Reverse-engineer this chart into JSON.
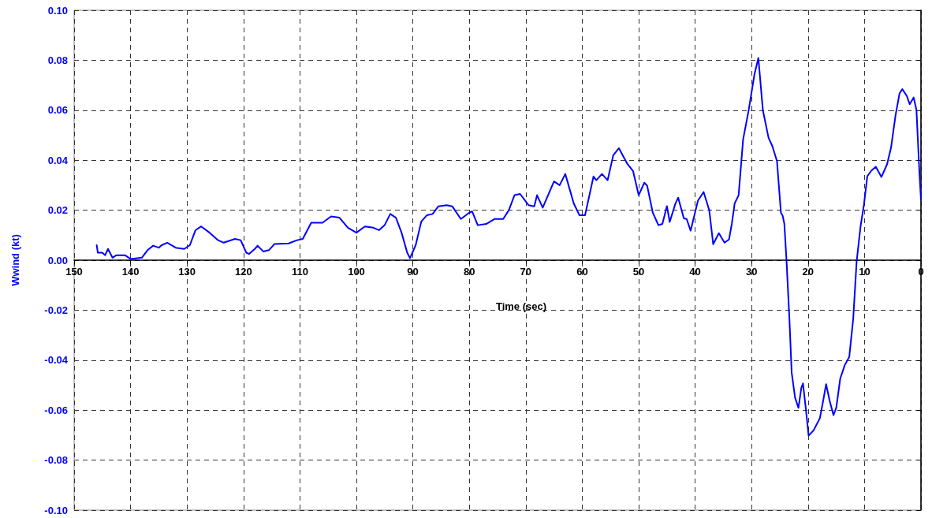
{
  "chart_data": {
    "type": "line",
    "xlabel": "Time (sec)",
    "ylabel": "Wwind (kt)",
    "xlim": [
      150,
      0
    ],
    "xticks": [
      150,
      140,
      130,
      120,
      110,
      100,
      90,
      80,
      70,
      60,
      50,
      40,
      30,
      20,
      10,
      0
    ],
    "ylim": [
      -0.1,
      0.1
    ],
    "yticks": [
      {
        "value": -0.1,
        "label": "-0.10"
      },
      {
        "value": -0.08,
        "label": "-0.08"
      },
      {
        "value": -0.06,
        "label": "-0.06"
      },
      {
        "value": -0.04,
        "label": "-0.04"
      },
      {
        "value": -0.02,
        "label": "-0.02"
      },
      {
        "value": 0,
        "label": "0.00"
      },
      {
        "value": 0.02,
        "label": "0.02"
      },
      {
        "value": 0.04,
        "label": "0.04"
      },
      {
        "value": 0.06,
        "label": "0.06"
      },
      {
        "value": 0.08,
        "label": "0.08"
      },
      {
        "value": 0.1,
        "label": "0.10"
      }
    ],
    "grid": true,
    "marker": "none",
    "line_style": "solid",
    "series": [
      {
        "color": "#0000ff",
        "x": [
          146,
          145.8,
          145,
          144.5,
          144,
          143.2,
          142.5,
          141,
          140,
          138,
          137,
          136,
          135,
          134.5,
          133.5,
          132,
          130.5,
          129.5,
          128.5,
          127.5,
          126,
          124.5,
          123.5,
          121.5,
          120.5,
          119.5,
          119,
          118,
          117.5,
          116.5,
          115.5,
          114.5,
          112,
          110.5,
          109.5,
          108,
          106,
          104.5,
          103,
          101.5,
          100,
          98.5,
          97,
          96,
          95,
          94,
          93,
          92,
          91,
          90.5,
          89.5,
          88.5,
          87.5,
          86.5,
          85.5,
          84,
          83,
          81.5,
          80,
          79.5,
          78.5,
          77,
          75.5,
          74,
          73,
          72,
          71,
          69.5,
          68.5,
          68,
          67,
          65,
          64,
          63,
          61.5,
          60.5,
          59.5,
          58,
          57.5,
          56.5,
          55.5,
          54.5,
          53.5,
          52,
          51,
          50,
          49,
          48.5,
          47.5,
          46.5,
          45.8,
          45,
          44.5,
          43.5,
          43,
          42,
          41.5,
          40.8,
          39.5,
          38.5,
          37.5,
          36.8,
          35.8,
          34.8,
          34,
          33.5,
          33,
          32.3,
          31.5,
          30.5,
          29.5,
          28.8,
          28,
          27,
          26.3,
          25.5,
          24.8,
          24.5,
          24.2,
          23.8,
          23.3,
          22.9,
          22.3,
          21.7,
          21.2,
          20.9,
          20.4,
          19.9,
          19,
          17.9,
          17.3,
          16.8,
          16.2,
          15.5,
          15,
          14.3,
          13.5,
          12.7,
          12,
          11.4,
          10.7,
          10.1,
          9.5,
          8.8,
          8,
          7,
          6,
          5.3,
          4.5,
          3.8,
          3.3,
          2.5,
          2,
          1.3,
          0.8,
          0.3,
          0
        ],
        "values": [
          0.006,
          0.003,
          0.003,
          0.002,
          0.0045,
          0.001,
          0.002,
          0.002,
          0.0005,
          0.001,
          0.004,
          0.0058,
          0.005,
          0.006,
          0.007,
          0.005,
          0.0045,
          0.006,
          0.012,
          0.0135,
          0.011,
          0.008,
          0.007,
          0.0085,
          0.008,
          0.003,
          0.0025,
          0.0045,
          0.0058,
          0.0035,
          0.004,
          0.0065,
          0.0067,
          0.008,
          0.0085,
          0.015,
          0.015,
          0.0175,
          0.017,
          0.013,
          0.011,
          0.0135,
          0.013,
          0.012,
          0.014,
          0.0185,
          0.017,
          0.011,
          0.003,
          0.0008,
          0.006,
          0.0155,
          0.018,
          0.0185,
          0.0215,
          0.022,
          0.0215,
          0.0165,
          0.019,
          0.0195,
          0.014,
          0.0145,
          0.0165,
          0.0165,
          0.02,
          0.026,
          0.0265,
          0.022,
          0.0215,
          0.026,
          0.021,
          0.0315,
          0.03,
          0.0345,
          0.0227,
          0.018,
          0.018,
          0.0335,
          0.032,
          0.0345,
          0.032,
          0.042,
          0.0448,
          0.0385,
          0.0357,
          0.026,
          0.031,
          0.0298,
          0.019,
          0.014,
          0.0145,
          0.0216,
          0.0153,
          0.0226,
          0.025,
          0.0167,
          0.0165,
          0.0118,
          0.0238,
          0.0273,
          0.02,
          0.0064,
          0.0108,
          0.007,
          0.0083,
          0.0146,
          0.0227,
          0.026,
          0.0483,
          0.0602,
          0.0743,
          0.0809,
          0.06,
          0.049,
          0.0455,
          0.0396,
          0.0189,
          0.0178,
          0.0146,
          -0.0007,
          -0.0235,
          -0.045,
          -0.055,
          -0.0591,
          -0.0512,
          -0.0493,
          -0.0593,
          -0.0702,
          -0.068,
          -0.0632,
          -0.056,
          -0.0496,
          -0.056,
          -0.062,
          -0.059,
          -0.0474,
          -0.042,
          -0.0387,
          -0.0235,
          -0.0007,
          0.0135,
          0.0222,
          0.0336,
          0.0358,
          0.0374,
          0.0333,
          0.0384,
          0.045,
          0.058,
          0.0667,
          0.0684,
          0.0657,
          0.0624,
          0.0651,
          0.0602,
          0.0363,
          0.0243
        ]
      }
    ]
  }
}
